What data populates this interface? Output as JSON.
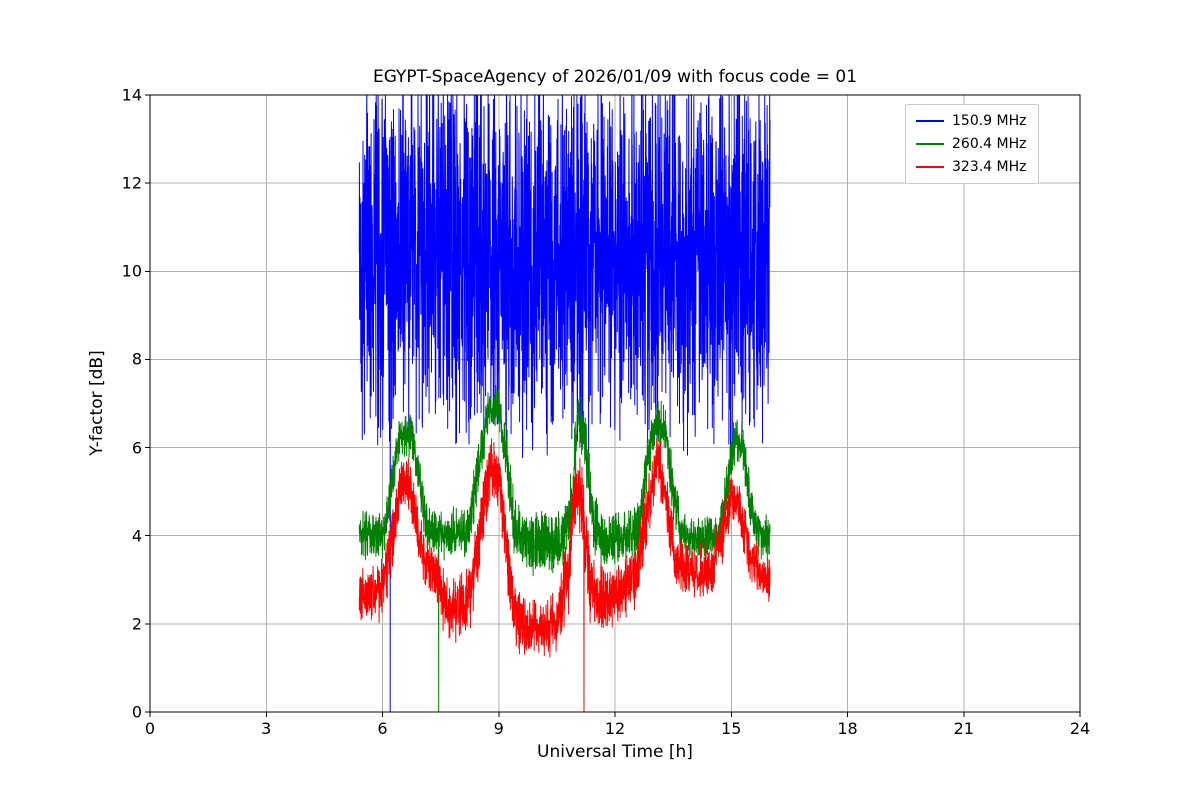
{
  "chart": {
    "title": "EGYPT-SpaceAgency of 2026/01/09 with focus code = 01",
    "xlabel": "Universal Time [h]",
    "ylabel": "Y-factor [dB]",
    "xlim": [
      0,
      24
    ],
    "ylim": [
      0,
      14
    ],
    "xticks": [
      0,
      3,
      6,
      9,
      12,
      15,
      18,
      21,
      24
    ],
    "yticks": [
      0,
      2,
      4,
      6,
      8,
      10,
      12,
      14
    ],
    "grid": true,
    "grid_color": "#b0b0b0",
    "axis_color": "#000000",
    "background": "#ffffff",
    "legend_position": "upper right"
  },
  "chart_data": {
    "type": "line",
    "x_range_of_data": [
      5.4,
      16.0
    ],
    "samples_per_series": 2400,
    "noise_seed": 42,
    "note": "Dense noisy time series between ~05:24 and 16:00 UT; envelope entries are [time_h, mean_dB, noise_half_range_dB]; spikes_to_zero are times where the trace drops to 0 dB; blue series is clipped at the 14 dB axis limit.",
    "series": [
      {
        "name": "150.9 MHz",
        "color": "#0000ff",
        "spikes_to_zero": [
          6.2
        ],
        "envelope": [
          [
            5.4,
            10.2,
            3.2
          ],
          [
            5.7,
            10.4,
            3.6
          ],
          [
            7.0,
            10.5,
            3.6
          ],
          [
            8.5,
            10.4,
            3.6
          ],
          [
            10.0,
            10.2,
            3.7
          ],
          [
            11.5,
            10.4,
            3.6
          ],
          [
            13.0,
            10.3,
            3.7
          ],
          [
            14.5,
            10.3,
            3.6
          ],
          [
            15.6,
            10.4,
            3.5
          ],
          [
            16.0,
            10.1,
            3.3
          ]
        ]
      },
      {
        "name": "260.4 MHz",
        "color": "#008000",
        "spikes_to_zero": [
          7.45
        ],
        "envelope": [
          [
            5.4,
            4.0,
            0.45
          ],
          [
            6.05,
            4.05,
            0.45
          ],
          [
            6.25,
            5.2,
            0.5
          ],
          [
            6.45,
            6.3,
            0.4
          ],
          [
            6.75,
            6.3,
            0.4
          ],
          [
            6.95,
            5.3,
            0.45
          ],
          [
            7.15,
            4.2,
            0.45
          ],
          [
            7.6,
            4.0,
            0.45
          ],
          [
            8.2,
            4.1,
            0.5
          ],
          [
            8.5,
            5.6,
            0.55
          ],
          [
            8.75,
            6.9,
            0.4
          ],
          [
            9.0,
            6.9,
            0.4
          ],
          [
            9.2,
            5.8,
            0.55
          ],
          [
            9.4,
            4.2,
            0.55
          ],
          [
            9.7,
            3.85,
            0.55
          ],
          [
            10.2,
            3.8,
            0.6
          ],
          [
            10.7,
            3.95,
            0.55
          ],
          [
            10.9,
            5.0,
            0.65
          ],
          [
            11.05,
            6.8,
            0.55
          ],
          [
            11.2,
            6.3,
            0.65
          ],
          [
            11.45,
            4.2,
            0.6
          ],
          [
            11.7,
            3.9,
            0.55
          ],
          [
            12.3,
            3.95,
            0.5
          ],
          [
            12.65,
            4.3,
            0.5
          ],
          [
            12.85,
            5.8,
            0.5
          ],
          [
            13.05,
            6.6,
            0.4
          ],
          [
            13.3,
            6.4,
            0.45
          ],
          [
            13.5,
            5.0,
            0.5
          ],
          [
            13.7,
            4.1,
            0.45
          ],
          [
            14.2,
            3.9,
            0.4
          ],
          [
            14.7,
            4.0,
            0.45
          ],
          [
            14.95,
            5.5,
            0.5
          ],
          [
            15.1,
            6.2,
            0.4
          ],
          [
            15.3,
            6.1,
            0.45
          ],
          [
            15.5,
            4.7,
            0.5
          ],
          [
            15.65,
            4.1,
            0.45
          ],
          [
            16.0,
            3.9,
            0.45
          ]
        ]
      },
      {
        "name": "323.4 MHz",
        "color": "#ff0000",
        "spikes_to_zero": [
          11.2
        ],
        "envelope": [
          [
            5.4,
            2.6,
            0.55
          ],
          [
            5.95,
            2.7,
            0.55
          ],
          [
            6.2,
            3.6,
            0.6
          ],
          [
            6.45,
            5.2,
            0.5
          ],
          [
            6.7,
            5.2,
            0.5
          ],
          [
            6.95,
            3.9,
            0.55
          ],
          [
            7.15,
            3.4,
            0.5
          ],
          [
            7.35,
            3.1,
            0.55
          ],
          [
            7.6,
            2.5,
            0.6
          ],
          [
            7.9,
            2.3,
            0.6
          ],
          [
            8.25,
            2.6,
            0.65
          ],
          [
            8.55,
            4.3,
            0.7
          ],
          [
            8.8,
            5.6,
            0.5
          ],
          [
            9.0,
            5.4,
            0.6
          ],
          [
            9.2,
            3.8,
            0.7
          ],
          [
            9.4,
            2.2,
            0.6
          ],
          [
            9.7,
            1.9,
            0.55
          ],
          [
            10.1,
            1.85,
            0.55
          ],
          [
            10.5,
            2.0,
            0.6
          ],
          [
            10.8,
            3.2,
            0.8
          ],
          [
            11.0,
            5.2,
            0.6
          ],
          [
            11.15,
            4.8,
            0.8
          ],
          [
            11.35,
            2.9,
            0.7
          ],
          [
            11.6,
            2.55,
            0.6
          ],
          [
            12.1,
            2.65,
            0.6
          ],
          [
            12.55,
            3.1,
            0.6
          ],
          [
            12.85,
            4.6,
            0.65
          ],
          [
            13.1,
            5.8,
            0.5
          ],
          [
            13.3,
            4.9,
            0.65
          ],
          [
            13.55,
            3.4,
            0.55
          ],
          [
            14.0,
            3.2,
            0.5
          ],
          [
            14.5,
            3.25,
            0.5
          ],
          [
            14.8,
            4.1,
            0.55
          ],
          [
            15.0,
            4.9,
            0.45
          ],
          [
            15.2,
            4.7,
            0.5
          ],
          [
            15.45,
            3.6,
            0.5
          ],
          [
            15.7,
            3.2,
            0.45
          ],
          [
            16.0,
            3.0,
            0.4
          ]
        ]
      }
    ]
  }
}
